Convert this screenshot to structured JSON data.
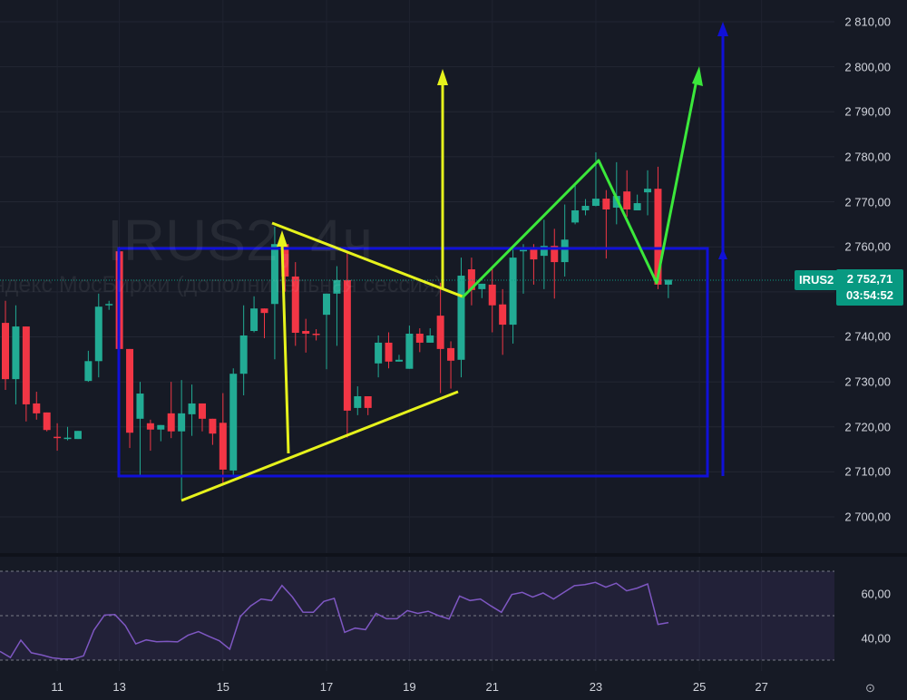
{
  "watermark": {
    "title": "IRUS2, 4ч",
    "subtitle": "Индекс МосБиржи (дополнительная сессия)"
  },
  "symbol_tag": "IRUS2",
  "last_price": "2 752,71",
  "countdown": "03:54:52",
  "colors": {
    "background": "#161a25",
    "up": "#22ab94",
    "down": "#f23645",
    "rsi_line": "#7e57c2",
    "rectangle": "#1010d8",
    "triangle": "#e6f21c",
    "zigzag": "#3be83b"
  },
  "price_axis_labels": [
    "2 810,00",
    "2 800,00",
    "2 790,00",
    "2 780,00",
    "2 770,00",
    "2 760,00",
    "2 750,00",
    "2 740,00",
    "2 730,00",
    "2 720,00",
    "2 710,00",
    "2 700,00"
  ],
  "rsi_axis_labels": [
    "60,00",
    "40,00"
  ],
  "time_axis_labels": [
    "11",
    "13",
    "15",
    "17",
    "19",
    "21",
    "23",
    "25",
    "27"
  ],
  "settings_icon": "gear-icon",
  "chart_data": [
    {
      "type": "candlestick",
      "title": "",
      "ylim": [
        2698,
        2814
      ],
      "grid": true,
      "candles": [
        [
          2743.1,
          2748.0,
          2728.2,
          2730.6
        ],
        [
          2730.6,
          2747.0,
          2725.0,
          2742.3
        ],
        [
          2742.3,
          2742.3,
          2721.2,
          2725.0
        ],
        [
          2725.2,
          2727.8,
          2721.6,
          2723.0
        ],
        [
          2723.2,
          2723.2,
          2719.0,
          2719.3
        ],
        [
          2717.8,
          2720.8,
          2714.7,
          2717.5
        ],
        [
          2717.3,
          2720.0,
          2717.0,
          2717.6
        ],
        [
          2717.3,
          2719.1,
          2717.3,
          2719.1
        ],
        [
          2730.2,
          2736.9,
          2730.0,
          2734.6
        ],
        [
          2734.6,
          2749.6,
          2731.0,
          2746.7
        ],
        [
          2747.0,
          2748.0,
          2746.0,
          2747.3
        ],
        [
          2759.0,
          2760.0,
          2737.0,
          2737.3
        ],
        [
          2737.3,
          2737.3,
          2715.3,
          2718.7
        ],
        [
          2721.8,
          2730.0,
          2709.1,
          2727.4
        ],
        [
          2720.8,
          2721.6,
          2714.7,
          2719.4
        ],
        [
          2719.4,
          2720.4,
          2716.8,
          2720.4
        ],
        [
          2723.0,
          2730.0,
          2717.5,
          2719.0
        ],
        [
          2719.0,
          2730.4,
          2704.0,
          2723.0
        ],
        [
          2722.8,
          2729.4,
          2718.0,
          2725.2
        ],
        [
          2725.2,
          2725.2,
          2719.0,
          2721.8
        ],
        [
          2721.8,
          2721.8,
          2716.0,
          2718.5
        ],
        [
          2720.9,
          2727.5,
          2707.0,
          2710.5
        ],
        [
          2710.3,
          2733.0,
          2709.0,
          2731.8
        ],
        [
          2731.8,
          2747.0,
          2727.0,
          2740.3
        ],
        [
          2741.3,
          2749.0,
          2741.0,
          2746.3
        ],
        [
          2746.3,
          2746.3,
          2739.7,
          2745.3
        ],
        [
          2747.3,
          2764.5,
          2735.0,
          2760.6
        ],
        [
          2760.6,
          2761.0,
          2750.0,
          2753.4
        ],
        [
          2753.4,
          2756.6,
          2738.0,
          2740.9
        ],
        [
          2741.3,
          2744.0,
          2736.5,
          2740.7
        ],
        [
          2740.7,
          2741.7,
          2739.2,
          2740.5
        ],
        [
          2744.9,
          2749.6,
          2732.8,
          2749.6
        ],
        [
          2749.6,
          2755.7,
          2738.0,
          2752.6
        ],
        [
          2752.6,
          2758.6,
          2717.6,
          2723.6
        ],
        [
          2724.2,
          2729.0,
          2722.6,
          2726.8
        ],
        [
          2726.8,
          2726.8,
          2722.6,
          2724.2
        ],
        [
          2734.1,
          2740.3,
          2731.0,
          2738.7
        ],
        [
          2738.7,
          2741.0,
          2733.0,
          2734.5
        ],
        [
          2734.5,
          2736.0,
          2734.5,
          2734.9
        ],
        [
          2732.9,
          2742.5,
          2732.9,
          2740.7
        ],
        [
          2740.7,
          2741.9,
          2736.6,
          2738.7
        ],
        [
          2738.7,
          2741.9,
          2738.7,
          2740.3
        ],
        [
          2744.7,
          2752.0,
          2727.5,
          2737.3
        ],
        [
          2737.5,
          2739.0,
          2728.5,
          2734.7
        ],
        [
          2734.9,
          2757.6,
          2731.0,
          2753.6
        ],
        [
          2755.0,
          2757.6,
          2747.0,
          2750.4
        ],
        [
          2750.6,
          2751.8,
          2748.6,
          2751.8
        ],
        [
          2751.6,
          2755.6,
          2741.0,
          2747.0
        ],
        [
          2747.2,
          2750.6,
          2736.0,
          2742.7
        ],
        [
          2742.7,
          2760.0,
          2738.5,
          2757.6
        ],
        [
          2759.0,
          2760.6,
          2749.6,
          2759.3
        ],
        [
          2759.4,
          2760.6,
          2751.6,
          2757.2
        ],
        [
          2758.0,
          2766.0,
          2750.6,
          2760.2
        ],
        [
          2760.2,
          2764.0,
          2748.5,
          2756.6
        ],
        [
          2756.6,
          2769.4,
          2753.4,
          2761.6
        ],
        [
          2765.4,
          2774.0,
          2765.0,
          2768.1
        ],
        [
          2768.1,
          2770.6,
          2767.0,
          2769.1
        ],
        [
          2769.1,
          2781.0,
          2769.0,
          2770.7
        ],
        [
          2770.7,
          2772.6,
          2757.4,
          2768.3
        ],
        [
          2768.7,
          2778.8,
          2765.0,
          2771.3
        ],
        [
          2772.3,
          2777.0,
          2766.7,
          2768.3
        ],
        [
          2768.1,
          2771.6,
          2768.1,
          2769.7
        ],
        [
          2772.1,
          2777.0,
          2767.0,
          2772.9
        ],
        [
          2772.9,
          2777.8,
          2750.6,
          2751.6
        ],
        [
          2751.6,
          2752.7,
          2748.6,
          2752.7
        ]
      ]
    },
    {
      "type": "line",
      "title": "",
      "ylim": [
        25,
        74
      ],
      "bands": [
        30,
        50,
        70
      ],
      "values": [
        33.9,
        31.2,
        39.0,
        33.3,
        32.3,
        31.0,
        30.5,
        30.5,
        31.9,
        43.5,
        50.3,
        50.5,
        45.5,
        37.3,
        39.1,
        38.3,
        38.4,
        38.2,
        41.2,
        42.8,
        40.7,
        38.7,
        34.9,
        49.6,
        54.4,
        57.5,
        56.8,
        63.6,
        58.4,
        51.6,
        51.5,
        56.4,
        57.8,
        42.5,
        44.4,
        43.7,
        51.0,
        48.6,
        48.6,
        52.3,
        51.0,
        52.0,
        50.0,
        48.5,
        58.8,
        56.8,
        57.5,
        54.4,
        51.5,
        59.5,
        60.5,
        58.4,
        60.2,
        57.5,
        60.5,
        63.5,
        64.0,
        65.0,
        62.8,
        64.6,
        61.2,
        62.4,
        64.3,
        46.1,
        46.9
      ]
    }
  ]
}
